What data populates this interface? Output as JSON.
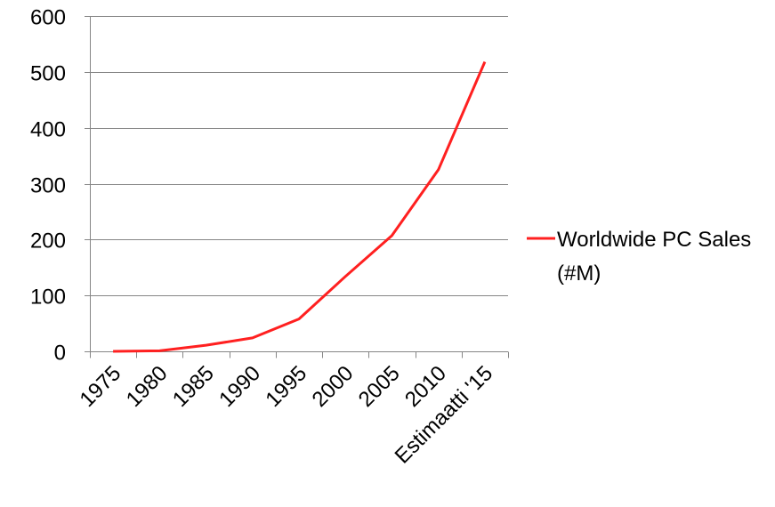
{
  "chart_data": {
    "type": "line",
    "categories": [
      "1975",
      "1980",
      "1985",
      "1990",
      "1995",
      "2000",
      "2005",
      "2010",
      "Estimaatti '15"
    ],
    "series": [
      {
        "name": "Worldwide PC Sales (#M)",
        "values": [
          0.05,
          1,
          11,
          24,
          58,
          134,
          207,
          325,
          518
        ]
      }
    ],
    "ylim": [
      0,
      600
    ],
    "yticks": [
      0,
      100,
      200,
      300,
      400,
      500,
      600
    ],
    "grid": true,
    "legend": "right",
    "colors": {
      "series": "#ff2020",
      "grid": "#868686",
      "axis": "#868686"
    }
  },
  "legend": {
    "line1": "Worldwide PC Sales",
    "line2": "(#M)"
  }
}
